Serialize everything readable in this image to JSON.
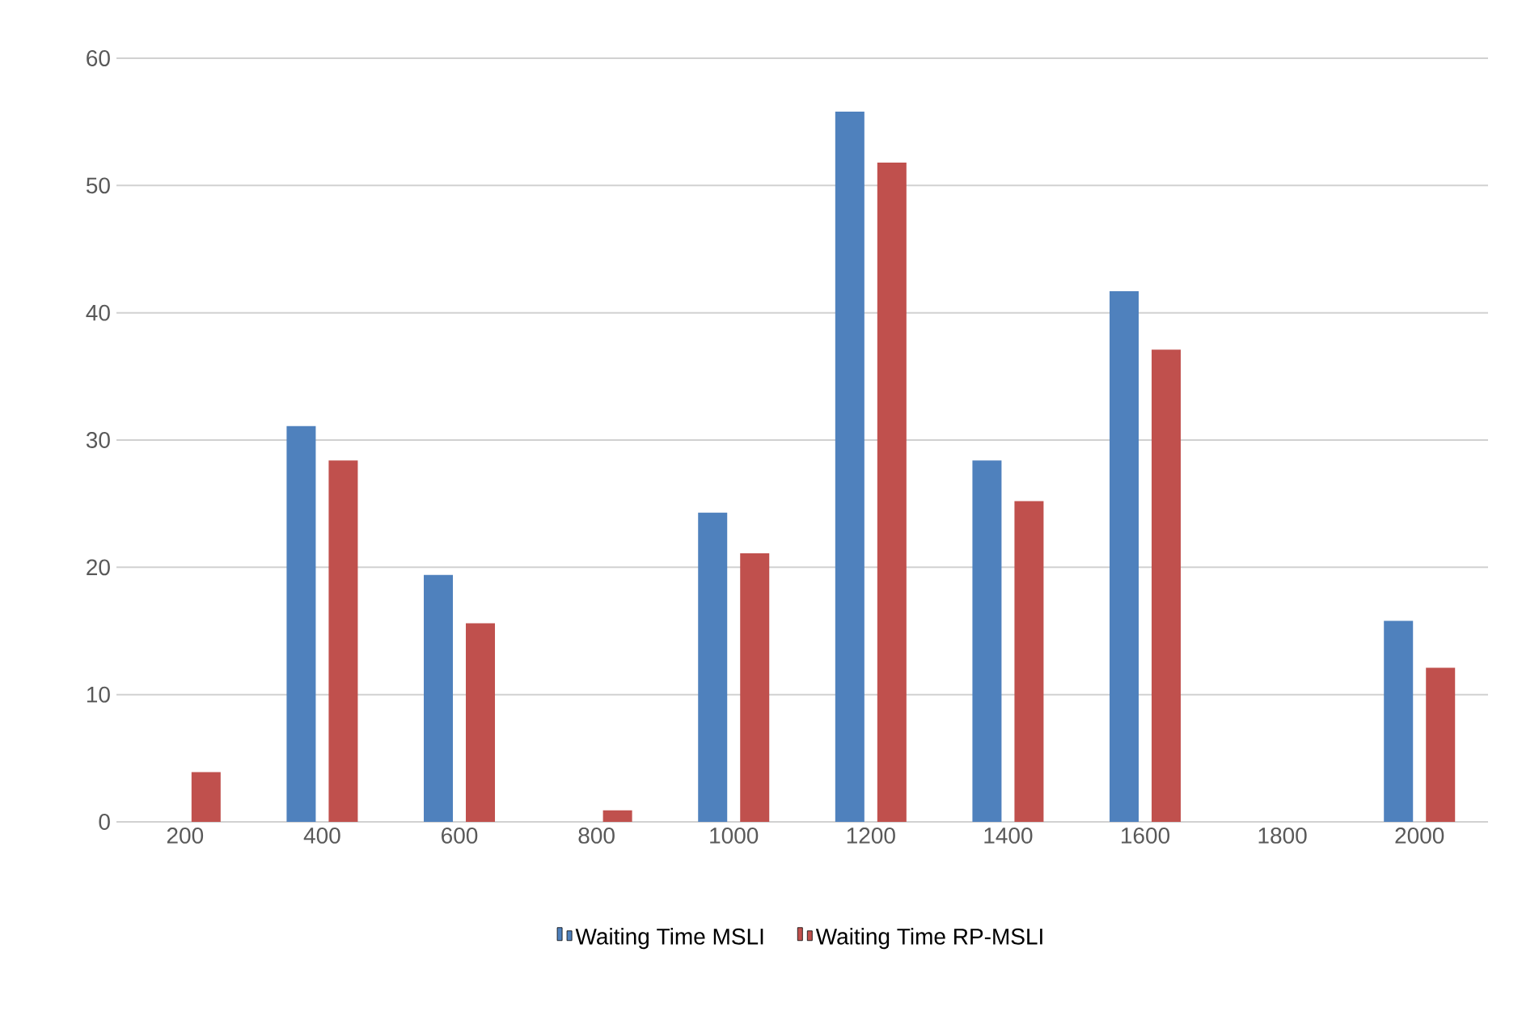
{
  "chart_data": {
    "type": "bar",
    "categories": [
      "200",
      "400",
      "600",
      "800",
      "1000",
      "1200",
      "1400",
      "1600",
      "1800",
      "2000"
    ],
    "series": [
      {
        "name": "Waiting Time MSLI",
        "color": "#4f81bd",
        "values": [
          null,
          31.1,
          19.4,
          null,
          24.3,
          55.8,
          28.4,
          41.7,
          null,
          15.8
        ]
      },
      {
        "name": "Waiting Time RP-MSLI",
        "color": "#c0504d",
        "values": [
          3.9,
          28.4,
          15.6,
          0.9,
          21.1,
          51.8,
          25.2,
          37.1,
          null,
          12.1
        ]
      }
    ],
    "ylim": [
      0,
      60
    ],
    "yticks": [
      0,
      10,
      20,
      30,
      40,
      50,
      60
    ],
    "grid": "y",
    "legend": "bottom"
  }
}
